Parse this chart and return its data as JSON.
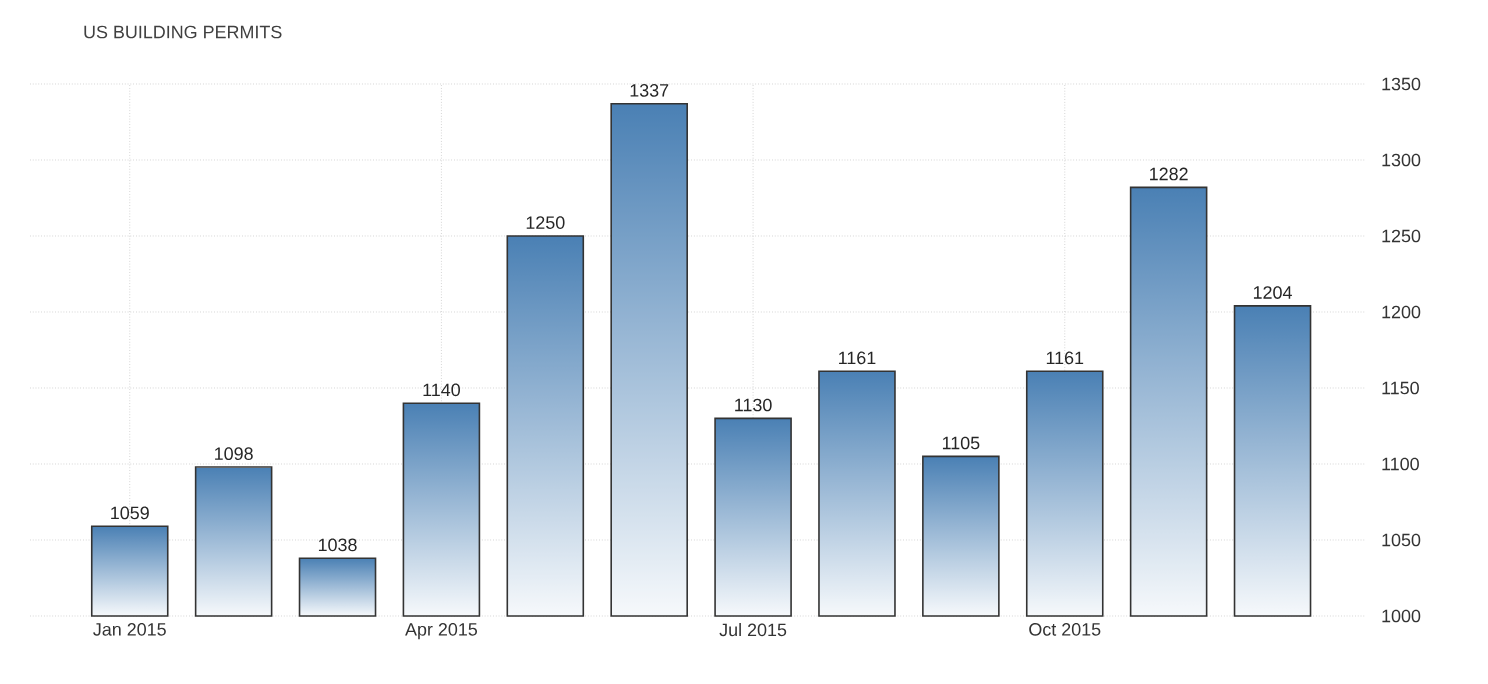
{
  "chart_data": {
    "type": "bar",
    "title": "US BUILDING PERMITS",
    "categories": [
      "Jan 2015",
      null,
      null,
      "Apr 2015",
      null,
      null,
      "Jul 2015",
      null,
      null,
      "Oct 2015",
      null,
      null
    ],
    "values": [
      1059,
      1098,
      1038,
      1140,
      1250,
      1337,
      1130,
      1161,
      1105,
      1161,
      1282,
      1204
    ],
    "color": "#4a80b4",
    "ylim": [
      1000,
      1350
    ],
    "yticks": [
      1000,
      1050,
      1100,
      1150,
      1200,
      1250,
      1300,
      1350
    ],
    "grid": true,
    "data_labels": true
  }
}
